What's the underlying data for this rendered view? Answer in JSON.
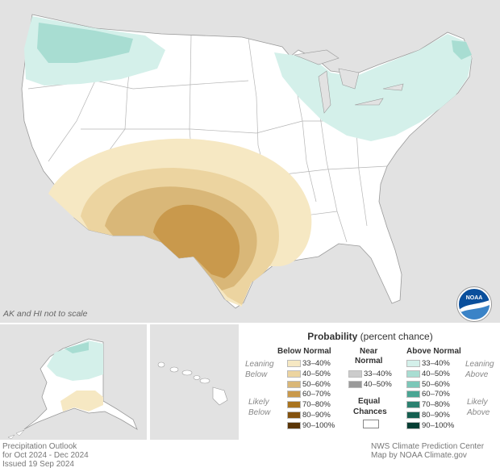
{
  "map": {
    "note": "AK and HI not to scale",
    "logo_text": "NOAA",
    "categories": {
      "below": {
        "33-40": "#f6e8c3",
        "40-50": "#ecd4a0",
        "50-60": "#d9b778",
        "60-70": "#c9994c"
      },
      "above": {
        "33-40": "#d4f0ea",
        "40-50": "#a8ddd2",
        "50-60": "#7cc7b8"
      }
    },
    "regions": [
      {
        "name": "Pacific Northwest / Northern Rockies",
        "category": "Above Normal 33–40%, core 40–50%"
      },
      {
        "name": "Great Lakes / Ohio Valley / Northeast",
        "category": "Above Normal 33–40%"
      },
      {
        "name": "Southwest / Southern Plains",
        "category": "Below Normal 33–40% to 50–60%"
      },
      {
        "name": "West Texas",
        "category": "Below Normal 50–60%"
      },
      {
        "name": "Alaska north",
        "category": "Above Normal 33–40%, core 40–50%"
      },
      {
        "name": "Alaska south",
        "category": "Below Normal 33–40%"
      }
    ]
  },
  "legend": {
    "title_bold": "Probability",
    "title_rest": " (percent chance)",
    "below_header": "Below Normal",
    "near_header_1": "Near",
    "near_header_2": "Normal",
    "above_header": "Above Normal",
    "leaning_below_1": "Leaning",
    "leaning_below_2": "Below",
    "likely_below_1": "Likely",
    "likely_below_2": "Below",
    "leaning_above_1": "Leaning",
    "leaning_above_2": "Above",
    "likely_above_1": "Likely",
    "likely_above_2": "Above",
    "equal_1": "Equal",
    "equal_2": "Chances",
    "below": [
      {
        "label": "33–40%",
        "color": "#f6e8c3"
      },
      {
        "label": "40–50%",
        "color": "#ecd4a0"
      },
      {
        "label": "50–60%",
        "color": "#d9b778"
      },
      {
        "label": "60–70%",
        "color": "#c9994c"
      },
      {
        "label": "70–80%",
        "color": "#a9741f"
      },
      {
        "label": "80–90%",
        "color": "#83520f"
      },
      {
        "label": "90–100%",
        "color": "#5a3507"
      }
    ],
    "near": [
      {
        "label": "33–40%",
        "color": "#cccccc"
      },
      {
        "label": "40–50%",
        "color": "#999999"
      }
    ],
    "above": [
      {
        "label": "33–40%",
        "color": "#d4f0ea"
      },
      {
        "label": "40–50%",
        "color": "#a8ddd2"
      },
      {
        "label": "50–60%",
        "color": "#7cc7b8"
      },
      {
        "label": "60–70%",
        "color": "#4aa593"
      },
      {
        "label": "70–80%",
        "color": "#2b8170"
      },
      {
        "label": "80–90%",
        "color": "#155f50"
      },
      {
        "label": "90–100%",
        "color": "#053e33"
      }
    ]
  },
  "footer": {
    "left_1": "Precipitation Outlook",
    "left_2": "for Oct 2024 - Dec 2024",
    "left_3": "Issued 19 Sep 2024",
    "right_1": "NWS Climate Prediction Center",
    "right_2": "Map by NOAA Climate.gov"
  }
}
